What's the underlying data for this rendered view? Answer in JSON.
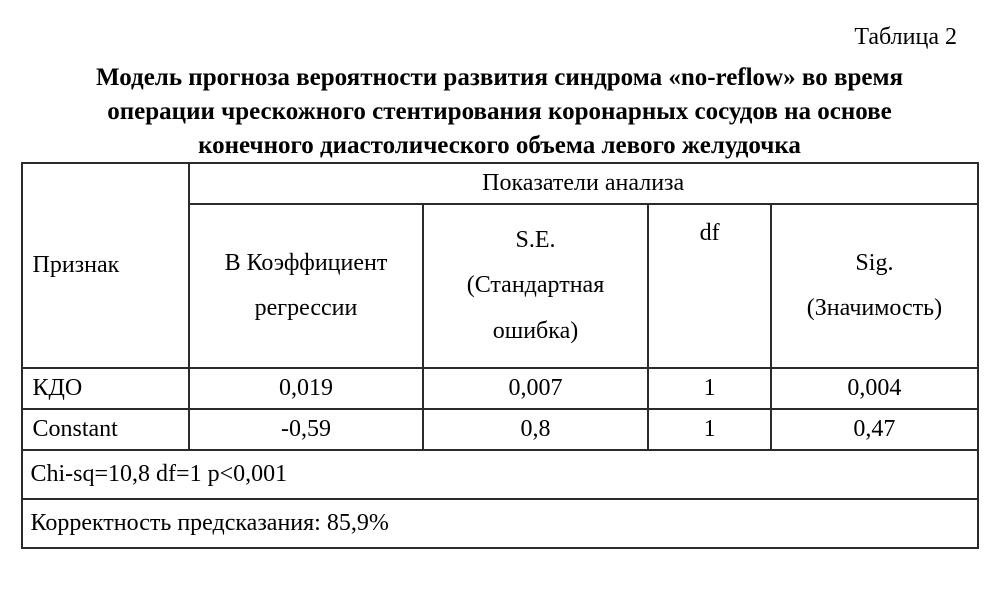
{
  "table_label": "Таблица 2",
  "title_line1": "Модель прогноза вероятности развития синдрома «no-reflow» во время",
  "title_line2": "операции чрескожного стентирования коронарных сосудов на основе",
  "title_line3": "конечного диастолического объема левого желудочка",
  "header": {
    "row_label": "Признак",
    "group": "Показатели анализа",
    "c1a": "В Коэффициент",
    "c1b": "регрессии",
    "c2a": "S.E.",
    "c2b": "(Стандартная",
    "c2c": "ошибка)",
    "c3": "df",
    "c4a": "Sig.",
    "c4b": "(Значимость)"
  },
  "rows": [
    {
      "name": "КДО",
      "b": "0,019",
      "se": "0,007",
      "df": "1",
      "sig": "0,004"
    },
    {
      "name": "Constant",
      "b": "-0,59",
      "se": "0,8",
      "df": "1",
      "sig": "0,47"
    }
  ],
  "footer1": "Chi-sq=10,8  df=1 p<0,001",
  "footer2": "Корректность предсказания: 85,9%",
  "col_widths": {
    "c1": 240,
    "c2": 230,
    "c3": 130,
    "c4": 210
  }
}
